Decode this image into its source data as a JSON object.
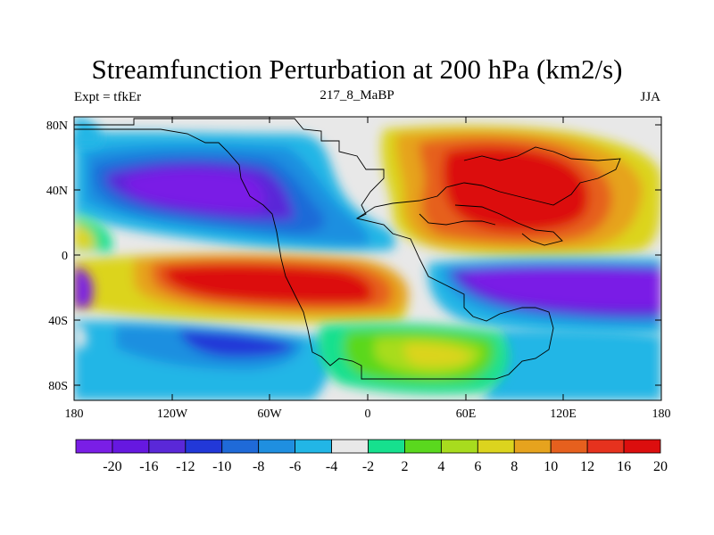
{
  "title": "Streamfunction Perturbation at 200 hPa (km2/s)",
  "left_label": "Expt = tfkEr",
  "center_label": "217_8_MaBP",
  "right_label": "JJA",
  "y_ticks": [
    "80N",
    "40N",
    "0",
    "40S",
    "80S"
  ],
  "x_ticks": [
    "180",
    "120W",
    "60W",
    "0",
    "60E",
    "120E",
    "180"
  ],
  "colorbar": {
    "colors": [
      "#7a1ee6",
      "#6618e0",
      "#5a28d8",
      "#2238d8",
      "#1f6ad8",
      "#1f8fe0",
      "#22b6e6",
      "#e8e8e8",
      "#16e08e",
      "#5ad81e",
      "#a8dc1e",
      "#dcd41e",
      "#e6a31e",
      "#e6601e",
      "#e6321e",
      "#dc0e0e"
    ],
    "labels": [
      "-20",
      "-16",
      "-12",
      "-10",
      "-8",
      "-6",
      "-4",
      "-2",
      "2",
      "4",
      "6",
      "8",
      "10",
      "12",
      "16",
      "20"
    ]
  }
}
